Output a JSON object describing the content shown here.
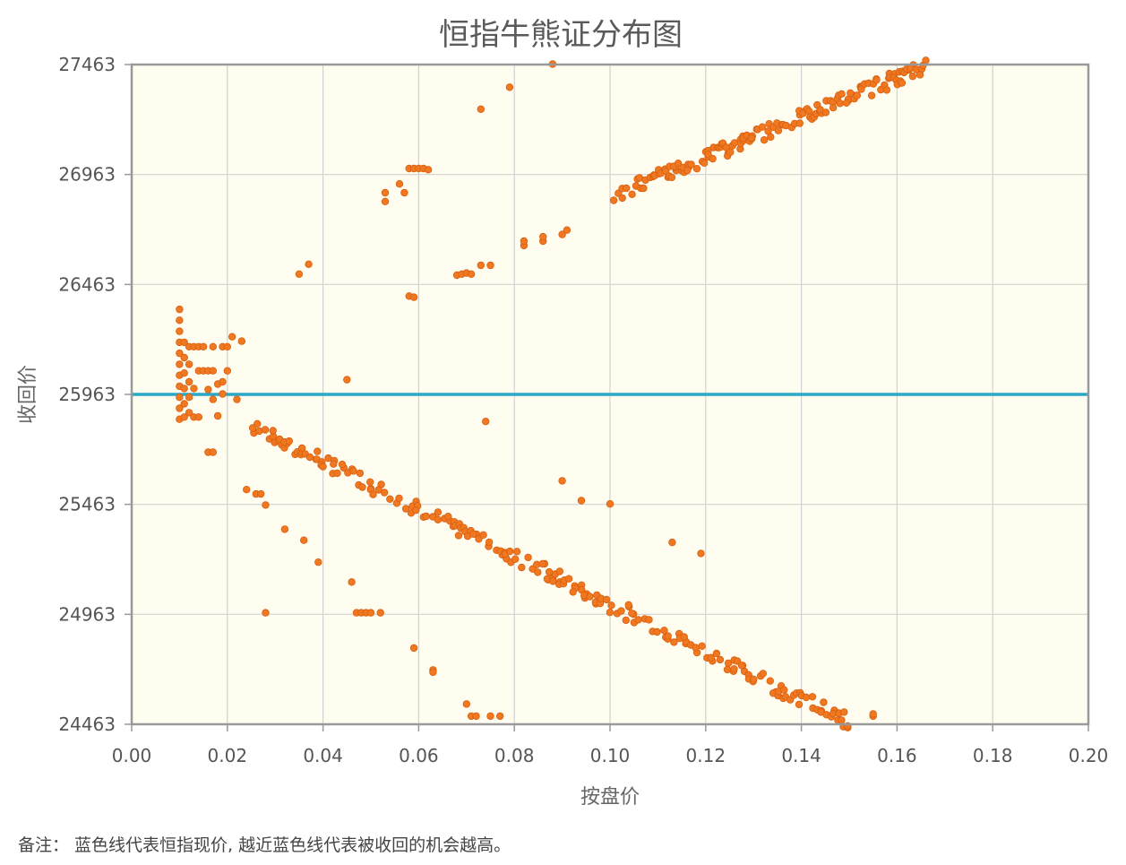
{
  "chart_data": {
    "type": "scatter",
    "title": "恒指牛熊证分布图",
    "xlabel": "按盘价",
    "ylabel": "收回价",
    "xlim": [
      0,
      0.2
    ],
    "ylim": [
      24463,
      27463
    ],
    "x_ticks": [
      "0.00",
      "0.02",
      "0.04",
      "0.06",
      "0.08",
      "0.10",
      "0.12",
      "0.14",
      "0.16",
      "0.18",
      "0.20"
    ],
    "y_ticks": [
      "24463",
      "24963",
      "25463",
      "25963",
      "26463",
      "26963",
      "27463"
    ],
    "grid": true,
    "plot_background": "#fffcf0",
    "point_color": "#f07820",
    "reference_line": {
      "y": 25963,
      "color": "#29a8c8"
    },
    "series": [
      {
        "points": [
          [
            0.01,
            26350
          ],
          [
            0.01,
            26300
          ],
          [
            0.01,
            26250
          ],
          [
            0.01,
            26200
          ],
          [
            0.01,
            26150
          ],
          [
            0.01,
            26100
          ],
          [
            0.01,
            26050
          ],
          [
            0.01,
            26000
          ],
          [
            0.01,
            25950
          ],
          [
            0.01,
            25900
          ],
          [
            0.01,
            25850
          ],
          [
            0.011,
            26200
          ],
          [
            0.011,
            26130
          ],
          [
            0.011,
            26060
          ],
          [
            0.011,
            25990
          ],
          [
            0.011,
            25920
          ],
          [
            0.011,
            25860
          ],
          [
            0.012,
            26180
          ],
          [
            0.012,
            26100
          ],
          [
            0.012,
            26020
          ],
          [
            0.012,
            25950
          ],
          [
            0.012,
            25880
          ],
          [
            0.013,
            26180
          ],
          [
            0.013,
            25990
          ],
          [
            0.013,
            25860
          ],
          [
            0.014,
            26180
          ],
          [
            0.014,
            26070
          ],
          [
            0.014,
            25860
          ],
          [
            0.015,
            26180
          ],
          [
            0.015,
            26070
          ],
          [
            0.016,
            26070
          ],
          [
            0.016,
            25985
          ],
          [
            0.016,
            25700
          ],
          [
            0.017,
            26180
          ],
          [
            0.017,
            26070
          ],
          [
            0.017,
            25700
          ],
          [
            0.017,
            25940
          ],
          [
            0.018,
            26010
          ],
          [
            0.018,
            25865
          ],
          [
            0.019,
            26180
          ],
          [
            0.019,
            25965
          ],
          [
            0.019,
            26020
          ],
          [
            0.02,
            26180
          ],
          [
            0.02,
            26070
          ],
          [
            0.021,
            26225
          ],
          [
            0.022,
            25940
          ],
          [
            0.023,
            26205
          ],
          [
            0.024,
            25530
          ],
          [
            0.026,
            25510
          ],
          [
            0.027,
            25510
          ],
          [
            0.028,
            25460
          ],
          [
            0.028,
            24970
          ],
          [
            0.032,
            25350
          ],
          [
            0.036,
            25300
          ],
          [
            0.039,
            25200
          ],
          [
            0.045,
            26030
          ],
          [
            0.046,
            25110
          ],
          [
            0.047,
            24970
          ],
          [
            0.048,
            24970
          ],
          [
            0.049,
            24970
          ],
          [
            0.05,
            24970
          ],
          [
            0.052,
            24970
          ],
          [
            0.035,
            26510
          ],
          [
            0.037,
            26555
          ],
          [
            0.053,
            26880
          ],
          [
            0.053,
            26840
          ],
          [
            0.056,
            26920
          ],
          [
            0.057,
            26880
          ],
          [
            0.058,
            26990
          ],
          [
            0.059,
            26990
          ],
          [
            0.06,
            26990
          ],
          [
            0.061,
            26990
          ],
          [
            0.062,
            26985
          ],
          [
            0.058,
            26410
          ],
          [
            0.059,
            26405
          ],
          [
            0.059,
            24810
          ],
          [
            0.063,
            24710
          ],
          [
            0.063,
            24700
          ],
          [
            0.068,
            26505
          ],
          [
            0.069,
            26510
          ],
          [
            0.07,
            26515
          ],
          [
            0.071,
            26510
          ],
          [
            0.073,
            26550
          ],
          [
            0.075,
            26550
          ],
          [
            0.073,
            27260
          ],
          [
            0.074,
            25840
          ],
          [
            0.079,
            27360
          ],
          [
            0.088,
            27465
          ],
          [
            0.07,
            24555
          ],
          [
            0.071,
            24500
          ],
          [
            0.072,
            24500
          ],
          [
            0.075,
            24500
          ],
          [
            0.077,
            24500
          ],
          [
            0.082,
            26640
          ],
          [
            0.082,
            26660
          ],
          [
            0.086,
            26660
          ],
          [
            0.086,
            26680
          ],
          [
            0.09,
            26690
          ],
          [
            0.091,
            26710
          ],
          [
            0.09,
            25570
          ],
          [
            0.094,
            25480
          ],
          [
            0.1,
            25465
          ],
          [
            0.113,
            25290
          ],
          [
            0.119,
            25240
          ],
          [
            0.155,
            24500
          ],
          [
            0.155,
            24510
          ]
        ]
      }
    ]
  },
  "note": "备注： 蓝色线代表恒指现价, 越近蓝色线代表被收回的机会越高。"
}
